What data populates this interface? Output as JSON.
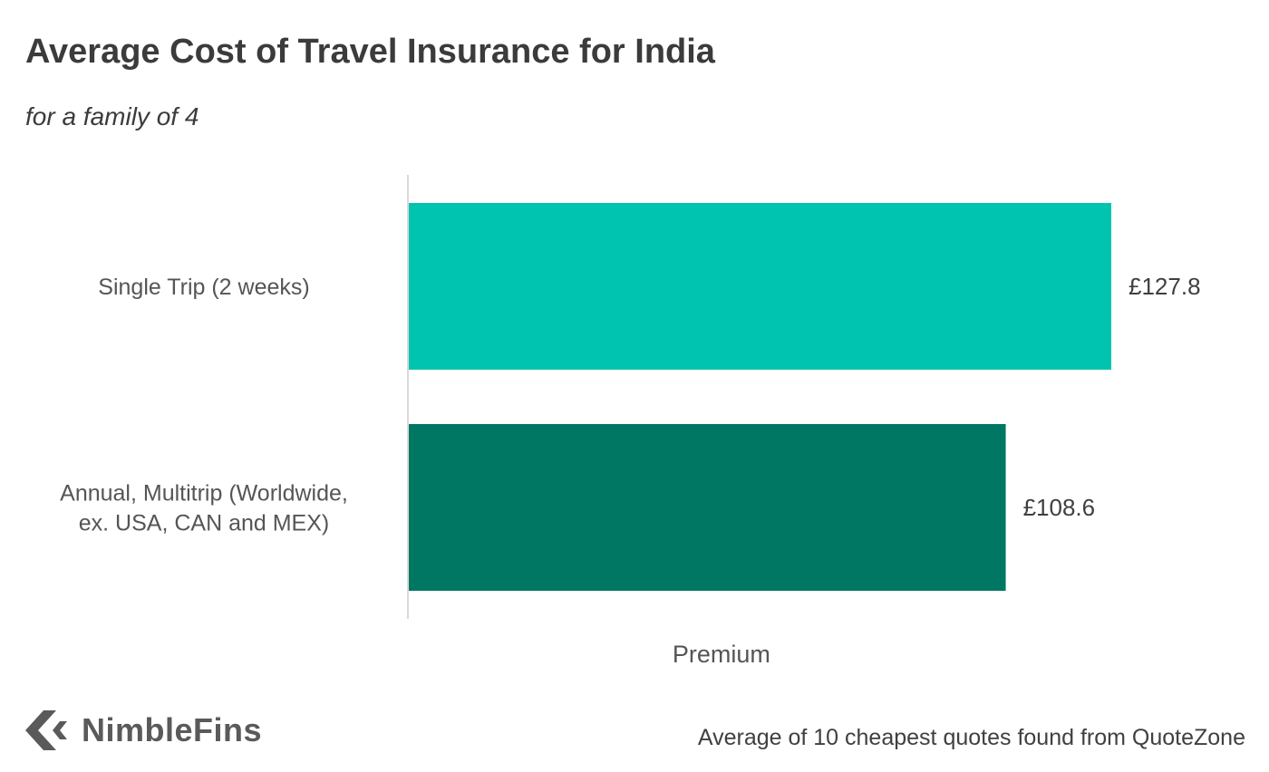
{
  "header": {
    "title": "Average Cost of Travel Insurance for India",
    "subtitle": "for a family of 4"
  },
  "chart_data": {
    "type": "bar",
    "orientation": "horizontal",
    "title": "Average Cost of Travel Insurance for India",
    "subtitle": "for a family of 4",
    "categories": [
      [
        "Single Trip (2 weeks)"
      ],
      [
        "Annual, Multitrip (Worldwide,",
        "ex. USA, CAN and MEX)"
      ]
    ],
    "values": [
      127.8,
      108.6
    ],
    "data_labels": [
      "£127.8",
      "£108.6"
    ],
    "colors": [
      "#00c4b0",
      "#007763"
    ],
    "xlabel": "Premium",
    "ylabel": "",
    "xlim": [
      0,
      127.8
    ],
    "grid": false,
    "legend": "none"
  },
  "branding": {
    "logo_text": "NimbleFins",
    "logo_icon": "chevron-left-icon"
  },
  "footer": {
    "source": "Average of 10 cheapest quotes found from QuoteZone"
  }
}
